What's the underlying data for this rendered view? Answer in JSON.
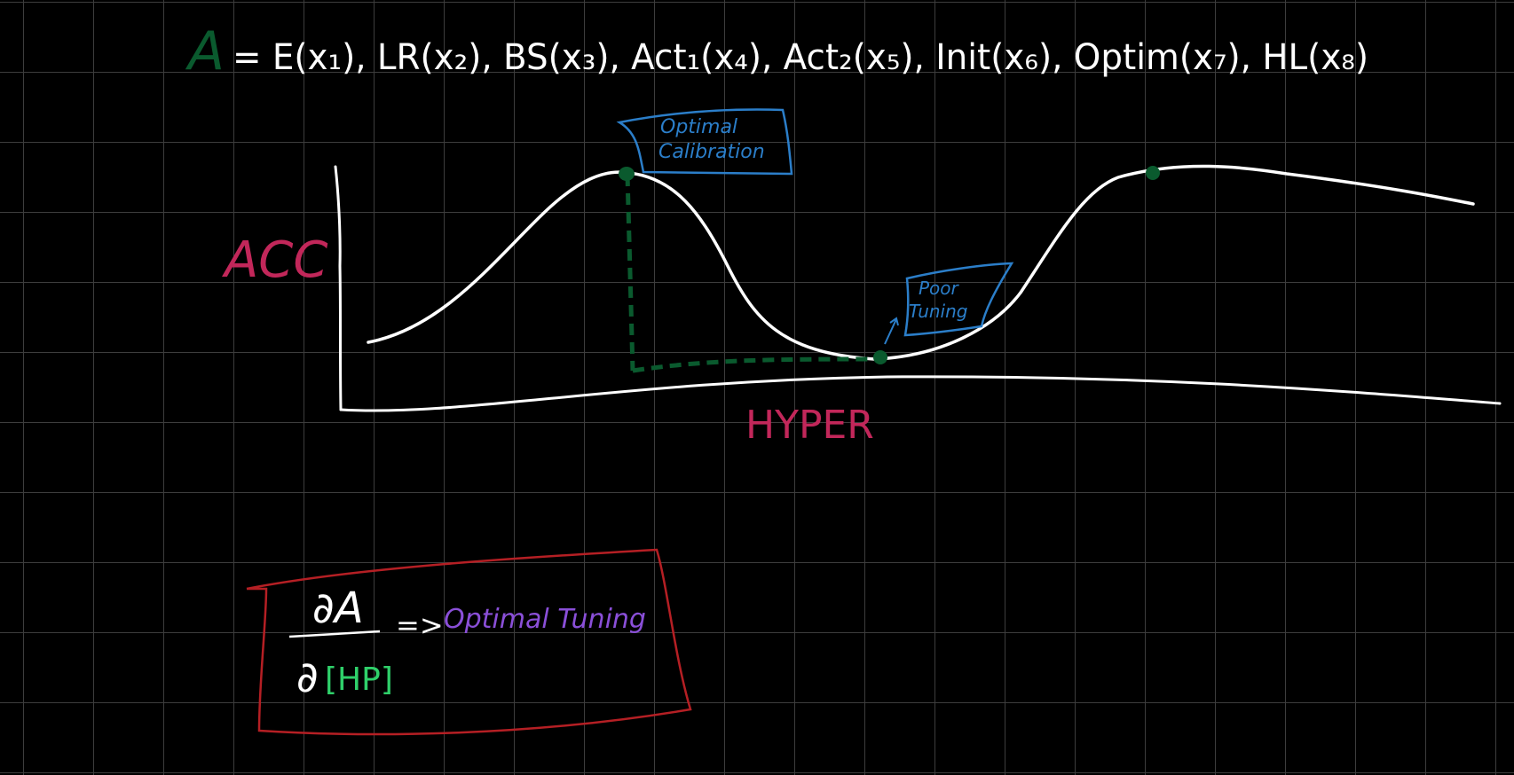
{
  "colors": {
    "background": "#000000",
    "grid": "#3d3d3d",
    "chalk": "#ffffff",
    "green": "#0a5a2e",
    "green_bright": "#2fd06a",
    "magenta": "#c2275a",
    "blue": "#2b7ec9",
    "purple": "#8a4fd8",
    "red": "#b51f24"
  },
  "formula": {
    "symbol": "A",
    "rhs": "= E(x₁), LR(x₂), BS(x₃), Act₁(x₄), Act₂(x₅), Init(x₆), Optim(x₇), HL(x₈)"
  },
  "graph": {
    "y_label": "ACC",
    "x_label": "HYPER",
    "note_optimal_line1": "Optimal",
    "note_optimal_line2": "Calibration",
    "note_poor_line1": "Poor",
    "note_poor_line2": "Tuning"
  },
  "box": {
    "numerator": "∂A",
    "denominator_sym": "∂",
    "denominator_hp": "[HP]",
    "arrow": "=>",
    "result": "Optimal Tuning"
  }
}
